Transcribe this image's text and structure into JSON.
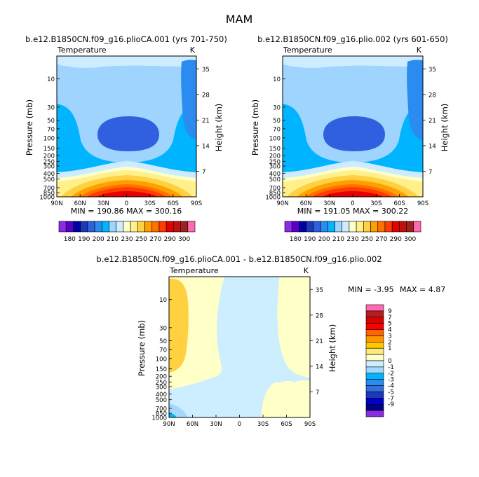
{
  "page_title": "MAM",
  "colors": {
    "abs": [
      "#8b2be2",
      "#5a00c8",
      "#0000a0",
      "#1c39b8",
      "#3060e0",
      "#2a8cf0",
      "#00b4ff",
      "#9fd4ff",
      "#cdecff",
      "#ffffc8",
      "#fff08c",
      "#ffd040",
      "#ffa000",
      "#ff7000",
      "#ff3c00",
      "#e60000",
      "#c01010",
      "#a02020",
      "#ff69b4"
    ],
    "diff": [
      "#8b2be2",
      "#00008b",
      "#0000cd",
      "#1c39b8",
      "#3070e0",
      "#2a8cf0",
      "#00b4ff",
      "#a6d8ff",
      "#cdeeff",
      "#ffffc8",
      "#ffe97a",
      "#ffc800",
      "#ff9600",
      "#ff6400",
      "#ff0000",
      "#dc0000",
      "#b41e1e",
      "#ff69b4"
    ]
  },
  "chart_data": [
    {
      "type": "heatmap",
      "name": "top-left",
      "title": "b.e12.B1850CN.f09_g16.plioCA.001 (yrs 701-750)",
      "variable": "Temperature",
      "units": "K",
      "ylabel": "Pressure (mb)",
      "ylabel_right": "Height (km)",
      "x_ticks": [
        "90N",
        "60N",
        "30N",
        "0",
        "30S",
        "60S",
        "90S"
      ],
      "y_ticks": [
        "10",
        "30",
        "50",
        "70",
        "100",
        "150",
        "200",
        "250",
        "300",
        "400",
        "500",
        "700",
        "850",
        "1000"
      ],
      "height_ticks": [
        "35",
        "28",
        "21",
        "14",
        "7"
      ],
      "min_max": "MIN = 190.86   MAX = 300.16",
      "colorbar_labels": [
        "180",
        "190",
        "200",
        "210",
        "230",
        "250",
        "270",
        "290",
        "300"
      ]
    },
    {
      "type": "heatmap",
      "name": "top-right",
      "title": "b.e12.B1850CN.f09_g16.plio.002 (yrs 601-650)",
      "variable": "Temperature",
      "units": "K",
      "ylabel": "Pressure (mb)",
      "ylabel_right": "Height (km)",
      "x_ticks": [
        "90N",
        "60N",
        "30N",
        "0",
        "30S",
        "60S",
        "90S"
      ],
      "y_ticks": [
        "10",
        "30",
        "50",
        "70",
        "100",
        "150",
        "200",
        "250",
        "300",
        "400",
        "500",
        "700",
        "850",
        "1000"
      ],
      "height_ticks": [
        "35",
        "28",
        "21",
        "14",
        "7"
      ],
      "min_max": "MIN = 191.05   MAX = 300.22",
      "colorbar_labels": [
        "180",
        "190",
        "200",
        "210",
        "230",
        "250",
        "270",
        "290",
        "300"
      ]
    },
    {
      "type": "heatmap",
      "name": "difference",
      "title": "b.e12.B1850CN.f09_g16.plioCA.001 - b.e12.B1850CN.f09_g16.plio.002",
      "variable": "Temperature",
      "units": "K",
      "ylabel": "Pressure (mb)",
      "ylabel_right": "Height (km)",
      "x_ticks": [
        "90N",
        "60N",
        "30N",
        "0",
        "30S",
        "60S",
        "90S"
      ],
      "y_ticks": [
        "10",
        "30",
        "50",
        "70",
        "100",
        "150",
        "200",
        "250",
        "300",
        "400",
        "500",
        "700",
        "850",
        "1000"
      ],
      "height_ticks": [
        "35",
        "28",
        "21",
        "14",
        "7"
      ],
      "min_label": "MIN =  -3.95",
      "max_label": "MAX =   4.87",
      "colorbar_labels": [
        "9",
        "7",
        "5",
        "4",
        "3",
        "2",
        "1",
        "0",
        "-1",
        "-2",
        "-3",
        "-4",
        "-5",
        "-7",
        "-9"
      ]
    }
  ]
}
